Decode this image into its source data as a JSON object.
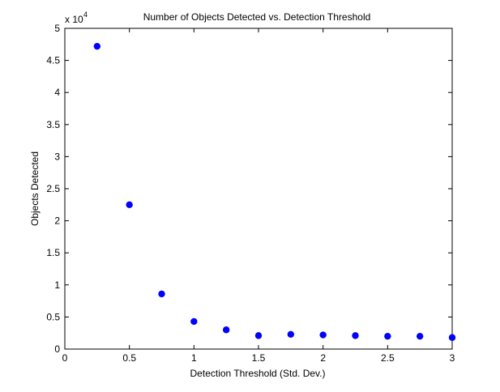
{
  "chart_data": {
    "type": "scatter",
    "title": "Number of Objects Detected vs. Detection Threshold",
    "xlabel": "Detection Threshold (Std. Dev.)",
    "ylabel": "Objects Detected",
    "y_exponent_label": {
      "base": "x 10",
      "power": "4"
    },
    "xlim": [
      0,
      3
    ],
    "ylim": [
      0,
      5
    ],
    "xticks": [
      0,
      0.5,
      1,
      1.5,
      2,
      2.5,
      3
    ],
    "xtick_labels": [
      "0",
      "0.5",
      "1",
      "1.5",
      "2",
      "2.5",
      "3"
    ],
    "yticks": [
      0,
      0.5,
      1,
      1.5,
      2,
      2.5,
      3,
      3.5,
      4,
      4.5,
      5
    ],
    "ytick_labels": [
      "0",
      "0.5",
      "1",
      "1.5",
      "2",
      "2.5",
      "3",
      "3.5",
      "4",
      "4.5",
      "5"
    ],
    "grid": false,
    "marker_color": "#0000ff",
    "x": [
      0.25,
      0.5,
      0.75,
      1.0,
      1.25,
      1.5,
      1.75,
      2.0,
      2.25,
      2.5,
      2.75,
      3.0
    ],
    "y": [
      4.72,
      2.25,
      0.86,
      0.43,
      0.3,
      0.21,
      0.23,
      0.22,
      0.21,
      0.2,
      0.2,
      0.18
    ]
  }
}
